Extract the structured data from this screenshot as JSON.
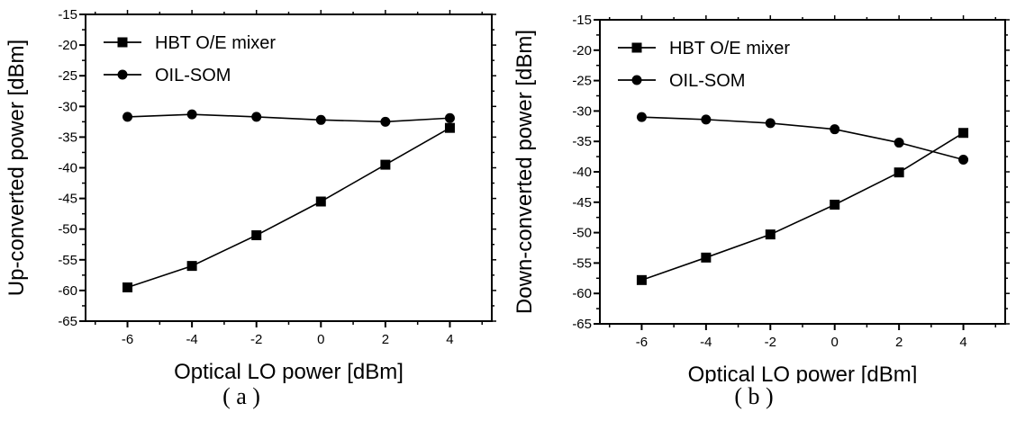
{
  "chart_data": [
    {
      "type": "line",
      "panel_label": "( a )",
      "xlabel": "Optical LO power [dBm]",
      "ylabel": "Up-converted power [dBm]",
      "xlim": [
        -7.3,
        5.3
      ],
      "ylim": [
        -65,
        -15
      ],
      "xticks": [
        -6,
        -4,
        -2,
        0,
        2,
        4
      ],
      "yticks": [
        -65,
        -60,
        -55,
        -50,
        -45,
        -40,
        -35,
        -30,
        -25,
        -20,
        -15
      ],
      "legend_position": "top-left",
      "x": [
        -6,
        -4,
        -2,
        0,
        2,
        4
      ],
      "series": [
        {
          "name": "HBT O/E mixer",
          "marker": "square",
          "values": [
            -59.5,
            -56.0,
            -51.0,
            -45.5,
            -39.5,
            -33.5
          ]
        },
        {
          "name": "OIL-SOM",
          "marker": "circle",
          "values": [
            -31.7,
            -31.3,
            -31.7,
            -32.2,
            -32.5,
            -31.9
          ]
        }
      ]
    },
    {
      "type": "line",
      "panel_label": "( b )",
      "xlabel": "Optical LO power [dBm]",
      "ylabel": "Down-converted power [dBm]",
      "xlim": [
        -7.3,
        5.3
      ],
      "ylim": [
        -65,
        -15
      ],
      "xticks": [
        -6,
        -4,
        -2,
        0,
        2,
        4
      ],
      "yticks": [
        -65,
        -60,
        -55,
        -50,
        -45,
        -40,
        -35,
        -30,
        -25,
        -20,
        -15
      ],
      "legend_position": "top-left",
      "x": [
        -6,
        -4,
        -2,
        0,
        2,
        4
      ],
      "series": [
        {
          "name": "HBT O/E mixer",
          "marker": "square",
          "values": [
            -57.8,
            -54.1,
            -50.3,
            -45.4,
            -40.1,
            -33.6
          ]
        },
        {
          "name": "OIL-SOM",
          "marker": "circle",
          "values": [
            -31.0,
            -31.4,
            -32.0,
            -33.0,
            -35.2,
            -38.0
          ]
        }
      ]
    }
  ]
}
